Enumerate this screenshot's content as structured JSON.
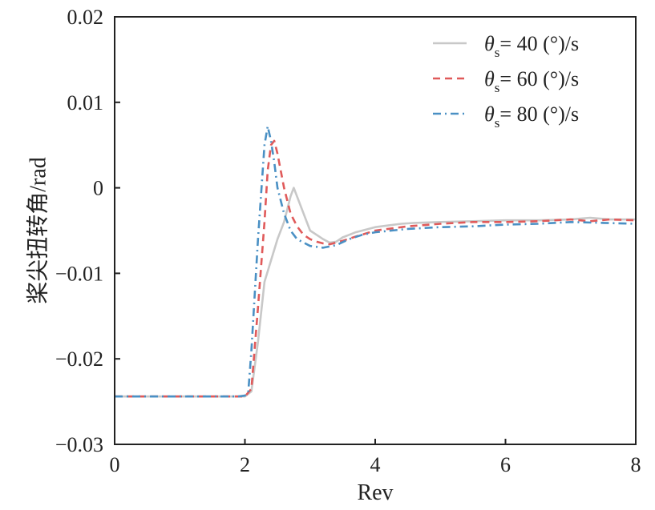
{
  "chart_data": {
    "type": "line",
    "xlabel": "Rev",
    "ylabel": "桨尖扭转角/rad",
    "xlim": [
      0,
      8
    ],
    "ylim": [
      -0.03,
      0.02
    ],
    "xticks": [
      "0",
      "2",
      "4",
      "6",
      "8"
    ],
    "yticks": [
      "0.02",
      "0.01",
      "0",
      "−0.01",
      "−0.02",
      "−0.03"
    ],
    "grid": false,
    "legend_position": "top-right",
    "series": [
      {
        "name": "θs= 40 (°)/s",
        "legend_symbol": "θ",
        "legend_subscript": "s",
        "legend_text": "= 40 (°)/s",
        "color": "#c8c8c8",
        "dash": "solid",
        "x": [
          0,
          1.9,
          2.0,
          2.1,
          2.2,
          2.3,
          2.4,
          2.5,
          2.6,
          2.7,
          2.75,
          2.8,
          2.9,
          3.0,
          3.1,
          3.2,
          3.3,
          3.4,
          3.5,
          3.6,
          3.7,
          3.8,
          3.9,
          4.0,
          4.2,
          4.4,
          4.6,
          5.0,
          5.5,
          6.0,
          6.5,
          7.0,
          7.3,
          7.6,
          8.0
        ],
        "y": [
          -0.0244,
          -0.0244,
          -0.0244,
          -0.0238,
          -0.018,
          -0.011,
          -0.0085,
          -0.006,
          -0.004,
          -0.001,
          0.0,
          -0.001,
          -0.003,
          -0.005,
          -0.0055,
          -0.006,
          -0.0064,
          -0.0063,
          -0.0058,
          -0.0055,
          -0.0052,
          -0.005,
          -0.0048,
          -0.0046,
          -0.0044,
          -0.0042,
          -0.0041,
          -0.004,
          -0.0039,
          -0.0038,
          -0.0038,
          -0.0037,
          -0.0035,
          -0.0037,
          -0.0037
        ]
      },
      {
        "name": "θs= 60 (°)/s",
        "legend_symbol": "θ",
        "legend_subscript": "s",
        "legend_text": "= 60 (°)/s",
        "color": "#e05a5a",
        "dash": "9,6",
        "x": [
          0,
          1.9,
          2.0,
          2.1,
          2.2,
          2.3,
          2.35,
          2.4,
          2.45,
          2.5,
          2.6,
          2.7,
          2.8,
          2.9,
          3.0,
          3.1,
          3.2,
          3.3,
          3.5,
          3.7,
          4.0,
          4.5,
          5.0,
          5.5,
          6.0,
          6.5,
          7.0,
          7.3,
          7.6,
          8.0
        ],
        "y": [
          -0.0244,
          -0.0244,
          -0.0244,
          -0.0235,
          -0.014,
          -0.004,
          0.002,
          0.005,
          0.0055,
          0.004,
          0.0,
          -0.003,
          -0.0045,
          -0.0055,
          -0.006,
          -0.0063,
          -0.0065,
          -0.0066,
          -0.0062,
          -0.0057,
          -0.005,
          -0.0045,
          -0.0042,
          -0.004,
          -0.004,
          -0.0039,
          -0.0037,
          -0.0039,
          -0.0037,
          -0.0038
        ]
      },
      {
        "name": "θs= 80 (°)/s",
        "legend_symbol": "θ",
        "legend_subscript": "s",
        "legend_text": "= 80 (°)/s",
        "color": "#4a90c4",
        "dash": "10,5,2,5",
        "x": [
          0,
          1.9,
          2.0,
          2.05,
          2.1,
          2.2,
          2.3,
          2.35,
          2.4,
          2.45,
          2.5,
          2.6,
          2.7,
          2.8,
          3.0,
          3.2,
          3.4,
          3.6,
          3.8,
          4.0,
          4.5,
          5.0,
          5.5,
          6.0,
          6.5,
          7.0,
          7.5,
          8.0
        ],
        "y": [
          -0.0244,
          -0.0244,
          -0.0243,
          -0.024,
          -0.019,
          -0.006,
          0.005,
          0.0072,
          0.0055,
          0.003,
          0.0,
          -0.003,
          -0.005,
          -0.006,
          -0.0068,
          -0.007,
          -0.0067,
          -0.006,
          -0.0055,
          -0.0052,
          -0.0048,
          -0.0046,
          -0.0045,
          -0.0043,
          -0.0042,
          -0.004,
          -0.0041,
          -0.0042
        ]
      }
    ]
  }
}
